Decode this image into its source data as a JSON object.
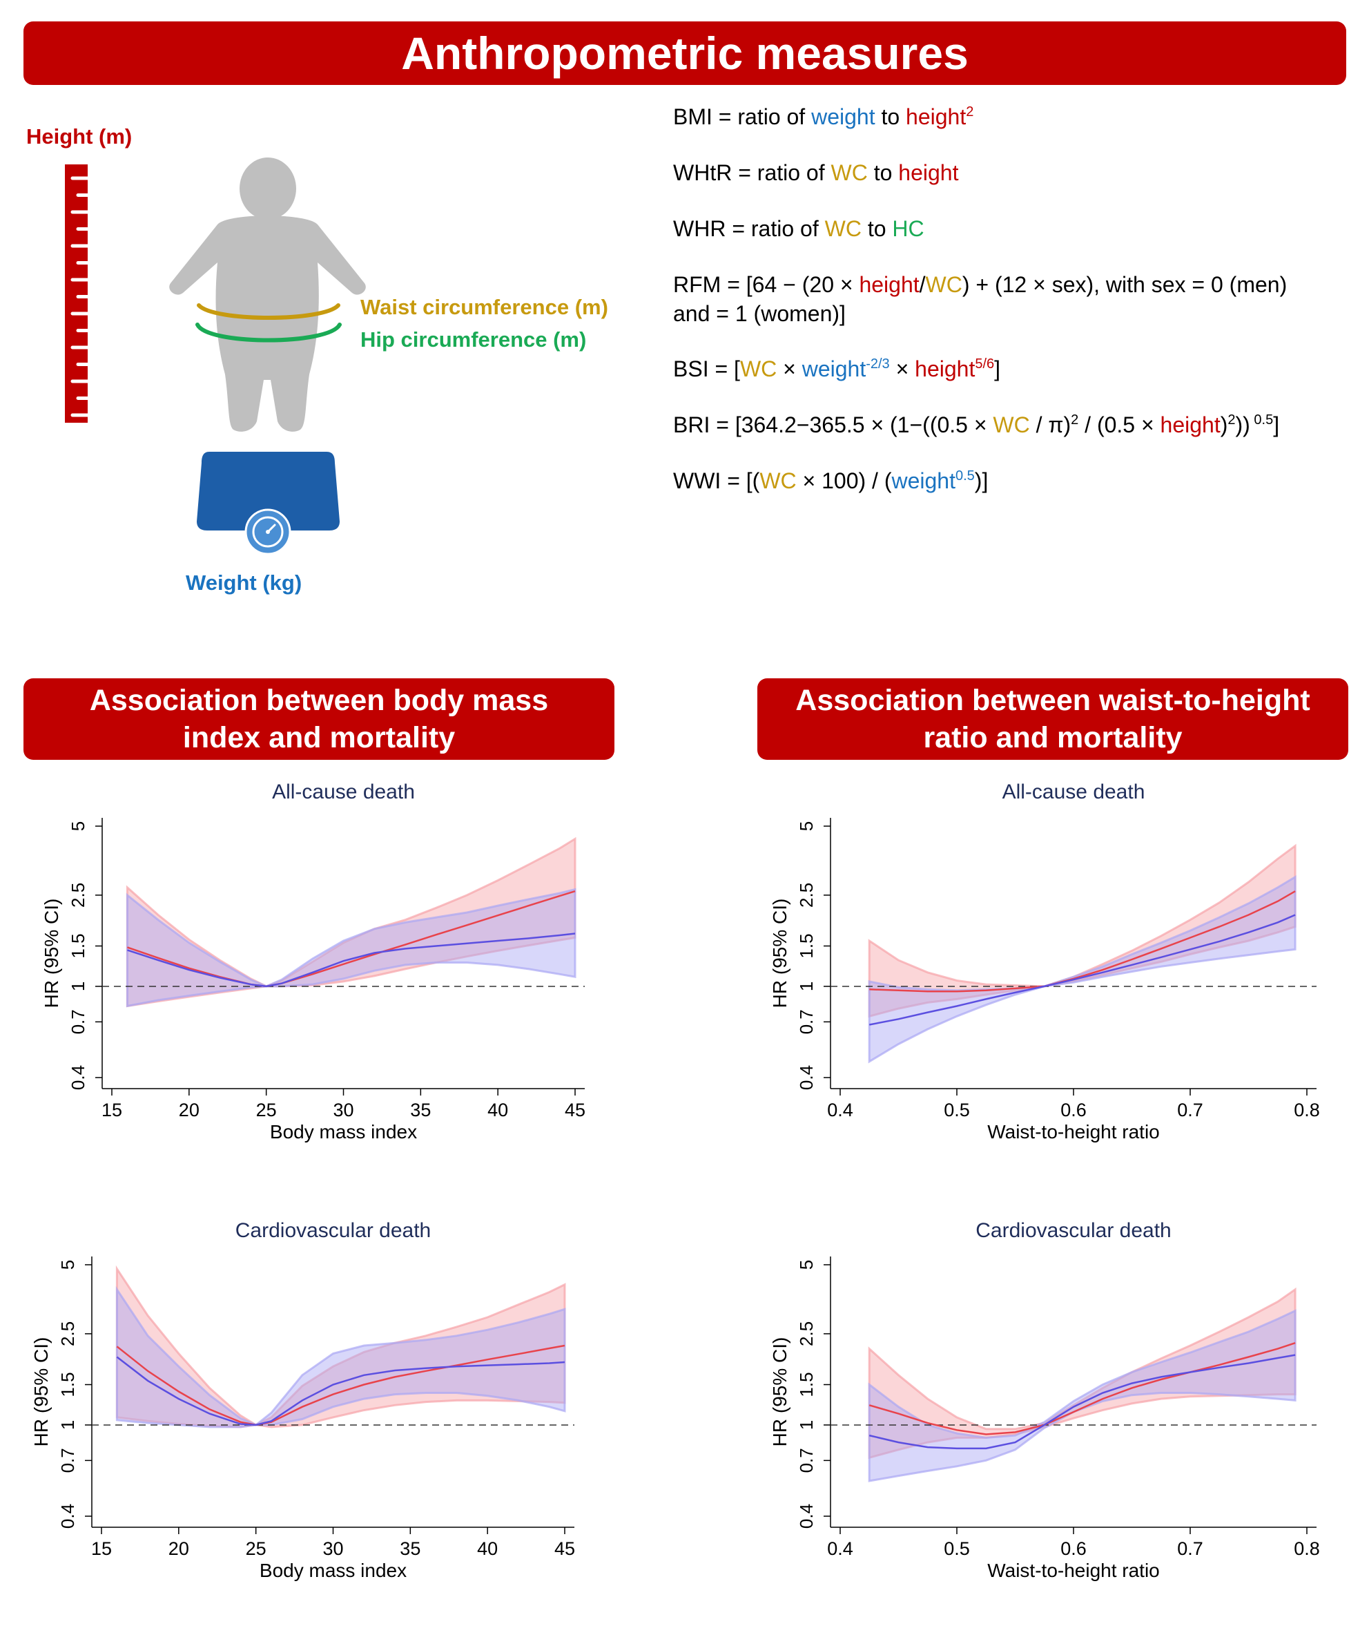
{
  "header": {
    "title": "Anthropometric measures"
  },
  "illustration": {
    "height_label": "Height (m)",
    "waist_label": "Waist circumference (m)",
    "hip_label": "Hip circumference (m)",
    "weight_label": "Weight (kg)"
  },
  "formulas": {
    "bmi": {
      "a": "BMI = ratio of ",
      "b": "weight",
      "c": " to ",
      "d": "height",
      "e": "2"
    },
    "whtr": {
      "a": "WHtR = ratio of ",
      "b": "WC",
      "c": " to ",
      "d": "height"
    },
    "whr": {
      "a": "WHR = ratio of ",
      "b": "WC",
      "c": " to ",
      "d": "HC"
    },
    "rfm": {
      "a": "RFM = [64 − (20 × ",
      "b": "height",
      "c": "/",
      "d": "WC",
      "e": ") + (12 × sex), with sex = 0 (men)",
      "f": "and = 1 (women)]"
    },
    "bsi": {
      "a": "BSI = [",
      "b": "WC",
      "c": " × ",
      "d": "weight",
      "e": "-2/3",
      "f": " × ",
      "g": "height",
      "h": "5/6",
      "i": "]"
    },
    "bri": {
      "a": "BRI = [364.2−365.5 × (1−((0.5 × ",
      "b": "WC",
      "c": " / π)",
      "d": "2",
      "e": " / (0.5 × ",
      "f": "height",
      "g": ")",
      "h": "2",
      "i": "))",
      "j": " 0.5",
      "k": "]"
    },
    "wwi": {
      "a": "WWI = [(",
      "b": "WC",
      "c": " × 100) / (",
      "d": "weight",
      "e": "0.5",
      "f": ")]"
    }
  },
  "sections": {
    "left_title_line1": "Association between body mass",
    "left_title_line2": "index and mortality",
    "right_title_line1": "Association between waist-to-height",
    "right_title_line2": "ratio and mortality"
  },
  "colors": {
    "red_line": "#e8434b",
    "blue_line": "#5b4fe0",
    "red_band": "#f7a3a8",
    "blue_band": "#a9a6f3",
    "banner": "#c00000"
  },
  "chart_data": [
    {
      "type": "line",
      "title": "All-cause death",
      "xlabel": "Body mass index",
      "ylabel": "HR (95% CI)",
      "xlim": [
        15,
        45
      ],
      "ylim": [
        0.4,
        5
      ],
      "y_scale": "log",
      "xticks": [
        15,
        20,
        25,
        30,
        35,
        40,
        45
      ],
      "yticks": [
        0.4,
        0.7,
        1,
        1.5,
        2.5,
        5
      ],
      "reference_line": 1,
      "x": [
        16,
        18,
        20,
        22,
        24,
        25,
        26,
        28,
        30,
        32,
        34,
        36,
        38,
        40,
        42,
        44,
        45
      ],
      "series": [
        {
          "color": "#e8434b",
          "values": [
            1.48,
            1.33,
            1.2,
            1.1,
            1.02,
            1.0,
            1.03,
            1.13,
            1.25,
            1.38,
            1.52,
            1.68,
            1.85,
            2.04,
            2.25,
            2.48,
            2.6
          ],
          "lower": [
            0.82,
            0.86,
            0.9,
            0.94,
            0.98,
            1.0,
            1.0,
            1.01,
            1.05,
            1.11,
            1.19,
            1.27,
            1.35,
            1.43,
            1.51,
            1.59,
            1.63
          ],
          "upper": [
            2.7,
            2.05,
            1.6,
            1.3,
            1.08,
            1.0,
            1.06,
            1.28,
            1.55,
            1.78,
            1.95,
            2.2,
            2.5,
            2.9,
            3.4,
            4.0,
            4.4
          ]
        },
        {
          "color": "#5b4fe0",
          "values": [
            1.44,
            1.3,
            1.18,
            1.09,
            1.02,
            1.0,
            1.03,
            1.15,
            1.29,
            1.4,
            1.46,
            1.5,
            1.54,
            1.58,
            1.62,
            1.67,
            1.7
          ],
          "lower": [
            0.82,
            0.87,
            0.91,
            0.95,
            0.99,
            1.0,
            1.0,
            1.02,
            1.08,
            1.17,
            1.24,
            1.27,
            1.27,
            1.24,
            1.19,
            1.13,
            1.1
          ],
          "upper": [
            2.5,
            1.95,
            1.55,
            1.28,
            1.07,
            1.0,
            1.07,
            1.32,
            1.58,
            1.78,
            1.9,
            2.0,
            2.1,
            2.25,
            2.4,
            2.55,
            2.65
          ]
        }
      ]
    },
    {
      "type": "line",
      "title": "All-cause death",
      "xlabel": "Waist-to-height ratio",
      "ylabel": "HR (95% CI)",
      "xlim": [
        0.4,
        0.8
      ],
      "ylim": [
        0.4,
        5
      ],
      "y_scale": "log",
      "xticks": [
        0.4,
        0.5,
        0.6,
        0.7,
        0.8
      ],
      "yticks": [
        0.4,
        0.7,
        1,
        1.5,
        2.5,
        5
      ],
      "reference_line": 1,
      "x": [
        0.425,
        0.45,
        0.475,
        0.5,
        0.525,
        0.55,
        0.575,
        0.6,
        0.625,
        0.65,
        0.675,
        0.7,
        0.725,
        0.75,
        0.775,
        0.79
      ],
      "series": [
        {
          "color": "#e8434b",
          "values": [
            0.97,
            0.96,
            0.95,
            0.95,
            0.96,
            0.98,
            1.0,
            1.08,
            1.18,
            1.31,
            1.46,
            1.63,
            1.82,
            2.05,
            2.35,
            2.6
          ],
          "lower": [
            0.74,
            0.8,
            0.85,
            0.88,
            0.92,
            0.96,
            1.0,
            1.05,
            1.12,
            1.2,
            1.28,
            1.38,
            1.48,
            1.58,
            1.72,
            1.82
          ],
          "upper": [
            1.58,
            1.3,
            1.15,
            1.06,
            1.02,
            1.01,
            1.0,
            1.1,
            1.25,
            1.43,
            1.66,
            1.95,
            2.32,
            2.85,
            3.6,
            4.1
          ]
        },
        {
          "color": "#5b4fe0",
          "values": [
            0.68,
            0.72,
            0.77,
            0.82,
            0.88,
            0.94,
            1.0,
            1.07,
            1.15,
            1.24,
            1.34,
            1.45,
            1.57,
            1.72,
            1.9,
            2.05
          ],
          "lower": [
            0.47,
            0.56,
            0.65,
            0.74,
            0.83,
            0.92,
            1.0,
            1.04,
            1.1,
            1.16,
            1.22,
            1.27,
            1.32,
            1.37,
            1.42,
            1.45
          ],
          "upper": [
            1.05,
            0.99,
            0.97,
            0.96,
            0.97,
            0.98,
            1.0,
            1.1,
            1.22,
            1.38,
            1.55,
            1.75,
            2.0,
            2.3,
            2.7,
            3.0
          ]
        }
      ]
    },
    {
      "type": "line",
      "title": "Cardiovascular death",
      "xlabel": "Body mass index",
      "ylabel": "HR (95% CI)",
      "xlim": [
        15,
        45
      ],
      "ylim": [
        0.4,
        5
      ],
      "y_scale": "log",
      "xticks": [
        15,
        20,
        25,
        30,
        35,
        40,
        45
      ],
      "yticks": [
        0.4,
        0.7,
        1,
        1.5,
        2.5,
        5
      ],
      "reference_line": 1,
      "x": [
        16,
        18,
        20,
        22,
        24,
        25,
        26,
        28,
        30,
        32,
        34,
        36,
        38,
        40,
        42,
        44,
        45
      ],
      "series": [
        {
          "color": "#e8434b",
          "values": [
            2.2,
            1.72,
            1.4,
            1.17,
            1.03,
            1.0,
            1.03,
            1.2,
            1.36,
            1.5,
            1.62,
            1.72,
            1.82,
            1.93,
            2.04,
            2.16,
            2.22
          ],
          "lower": [
            1.08,
            1.04,
            1.01,
            0.99,
            0.98,
            1.0,
            0.98,
            1.0,
            1.08,
            1.16,
            1.22,
            1.26,
            1.28,
            1.28,
            1.27,
            1.26,
            1.25
          ],
          "upper": [
            4.8,
            3.0,
            2.05,
            1.45,
            1.1,
            1.0,
            1.08,
            1.48,
            1.8,
            2.08,
            2.28,
            2.45,
            2.68,
            2.95,
            3.35,
            3.8,
            4.1
          ]
        },
        {
          "color": "#5b4fe0",
          "values": [
            1.98,
            1.56,
            1.3,
            1.12,
            1.01,
            1.0,
            1.04,
            1.28,
            1.5,
            1.65,
            1.73,
            1.77,
            1.8,
            1.82,
            1.84,
            1.86,
            1.88
          ],
          "lower": [
            1.05,
            1.02,
            1.0,
            0.98,
            0.98,
            1.0,
            1.0,
            1.06,
            1.2,
            1.3,
            1.36,
            1.38,
            1.38,
            1.34,
            1.28,
            1.2,
            1.15
          ],
          "upper": [
            3.9,
            2.45,
            1.8,
            1.35,
            1.07,
            1.0,
            1.13,
            1.65,
            2.05,
            2.22,
            2.28,
            2.35,
            2.45,
            2.6,
            2.8,
            3.05,
            3.2
          ]
        }
      ]
    },
    {
      "type": "line",
      "title": "Cardiovascular death",
      "xlabel": "Waist-to-height ratio",
      "ylabel": "HR (95% CI)",
      "xlim": [
        0.4,
        0.8
      ],
      "ylim": [
        0.4,
        5
      ],
      "y_scale": "log",
      "xticks": [
        0.4,
        0.5,
        0.6,
        0.7,
        0.8
      ],
      "yticks": [
        0.4,
        0.7,
        1,
        1.5,
        2.5,
        5
      ],
      "reference_line": 1,
      "x": [
        0.425,
        0.45,
        0.475,
        0.5,
        0.525,
        0.55,
        0.575,
        0.6,
        0.625,
        0.65,
        0.675,
        0.7,
        0.725,
        0.75,
        0.775,
        0.79
      ],
      "series": [
        {
          "color": "#e8434b",
          "values": [
            1.22,
            1.12,
            1.02,
            0.95,
            0.91,
            0.93,
            1.0,
            1.14,
            1.3,
            1.45,
            1.58,
            1.7,
            1.83,
            1.98,
            2.15,
            2.28
          ],
          "lower": [
            0.72,
            0.78,
            0.84,
            0.88,
            0.88,
            0.91,
            0.98,
            1.07,
            1.16,
            1.24,
            1.3,
            1.33,
            1.34,
            1.35,
            1.36,
            1.36
          ],
          "upper": [
            2.15,
            1.65,
            1.3,
            1.08,
            0.96,
            0.96,
            1.02,
            1.22,
            1.45,
            1.7,
            1.95,
            2.22,
            2.55,
            2.95,
            3.45,
            3.9
          ]
        },
        {
          "color": "#5b4fe0",
          "values": [
            0.9,
            0.84,
            0.8,
            0.79,
            0.79,
            0.84,
            1.0,
            1.2,
            1.38,
            1.52,
            1.62,
            1.7,
            1.78,
            1.86,
            1.96,
            2.02
          ],
          "lower": [
            0.57,
            0.6,
            0.63,
            0.66,
            0.7,
            0.78,
            0.97,
            1.14,
            1.27,
            1.35,
            1.38,
            1.38,
            1.36,
            1.33,
            1.3,
            1.28
          ],
          "upper": [
            1.5,
            1.2,
            1.0,
            0.92,
            0.88,
            0.9,
            1.03,
            1.27,
            1.5,
            1.7,
            1.88,
            2.07,
            2.3,
            2.55,
            2.9,
            3.15
          ]
        }
      ]
    }
  ]
}
